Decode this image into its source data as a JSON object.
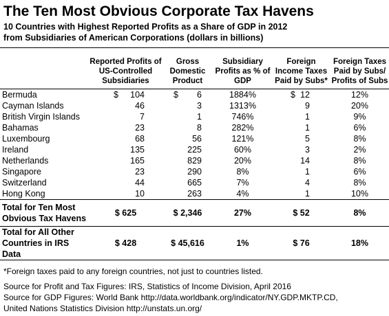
{
  "title": "The Ten Most Obvious Corporate Tax Havens",
  "subtitle_line1": "10 Countries with Highest Reported Profits as a Share of GDP in 2012",
  "subtitle_line2": "from Subsidiaries of American Corporations (dollars in billions)",
  "headers": [
    "",
    "Reported Profits of US-Controlled Subsidiaries",
    "Gross Domestic Product",
    "Subsidiary Profits as % of GDP",
    "Foreign Income Taxes Paid by Subs*",
    "Foreign Taxes Paid by Subs/ Profits of Subs"
  ],
  "rows": [
    {
      "country": "Bermuda",
      "profits_prefix": "$",
      "profits": "104",
      "gdp_prefix": "$",
      "gdp": "6",
      "pct": "1884%",
      "tax_prefix": "$",
      "tax": "12",
      "rate": "12%"
    },
    {
      "country": "Cayman Islands",
      "profits_prefix": "",
      "profits": "46",
      "gdp_prefix": "",
      "gdp": "3",
      "pct": "1313%",
      "tax_prefix": "",
      "tax": "9",
      "rate": "20%"
    },
    {
      "country": "British Virgin Islands",
      "profits_prefix": "",
      "profits": "7",
      "gdp_prefix": "",
      "gdp": "1",
      "pct": "746%",
      "tax_prefix": "",
      "tax": "1",
      "rate": "9%"
    },
    {
      "country": "Bahamas",
      "profits_prefix": "",
      "profits": "23",
      "gdp_prefix": "",
      "gdp": "8",
      "pct": "282%",
      "tax_prefix": "",
      "tax": "1",
      "rate": "6%"
    },
    {
      "country": "Luxembourg",
      "profits_prefix": "",
      "profits": "68",
      "gdp_prefix": "",
      "gdp": "56",
      "pct": "121%",
      "tax_prefix": "",
      "tax": "5",
      "rate": "8%"
    },
    {
      "country": "Ireland",
      "profits_prefix": "",
      "profits": "135",
      "gdp_prefix": "",
      "gdp": "225",
      "pct": "60%",
      "tax_prefix": "",
      "tax": "3",
      "rate": "2%"
    },
    {
      "country": "Netherlands",
      "profits_prefix": "",
      "profits": "165",
      "gdp_prefix": "",
      "gdp": "829",
      "pct": "20%",
      "tax_prefix": "",
      "tax": "14",
      "rate": "8%"
    },
    {
      "country": "Singapore",
      "profits_prefix": "",
      "profits": "23",
      "gdp_prefix": "",
      "gdp": "290",
      "pct": "8%",
      "tax_prefix": "",
      "tax": "1",
      "rate": "6%"
    },
    {
      "country": "Switzerland",
      "profits_prefix": "",
      "profits": "44",
      "gdp_prefix": "",
      "gdp": "665",
      "pct": "7%",
      "tax_prefix": "",
      "tax": "4",
      "rate": "8%"
    },
    {
      "country": "Hong Kong",
      "profits_prefix": "",
      "profits": "10",
      "gdp_prefix": "",
      "gdp": "263",
      "pct": "4%",
      "tax_prefix": "",
      "tax": "1",
      "rate": "10%"
    }
  ],
  "totals": [
    {
      "label": "Total for Ten Most Obvious Tax Havens",
      "profits": "$ 625",
      "gdp": "$ 2,346",
      "pct": "27%",
      "tax": "$ 52",
      "rate": "8%"
    },
    {
      "label": "Total for All Other Countries in IRS Data",
      "profits": "$ 428",
      "gdp": "$ 45,616",
      "pct": "1%",
      "tax": "$ 76",
      "rate": "18%"
    }
  ],
  "notes": [
    "*Foreign taxes paid to any foreign countries, not just to countries listed.",
    "Source for Profit and Tax Figures: IRS, Statistics of Income Division, April 2016",
    "Source for GDP Figures: World Bank http://data.worldbank.org/indicator/NY.GDP.MKTP.CD,",
    "United Nations Statistics Division http://unstats.un.org/"
  ]
}
